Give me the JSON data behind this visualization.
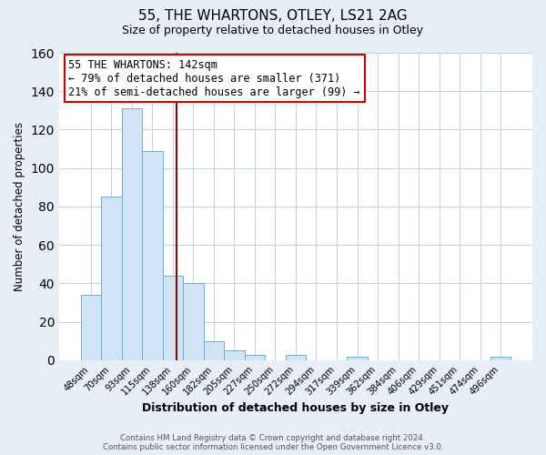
{
  "title1": "55, THE WHARTONS, OTLEY, LS21 2AG",
  "title2": "Size of property relative to detached houses in Otley",
  "xlabel": "Distribution of detached houses by size in Otley",
  "ylabel": "Number of detached properties",
  "bin_labels": [
    "48sqm",
    "70sqm",
    "93sqm",
    "115sqm",
    "138sqm",
    "160sqm",
    "182sqm",
    "205sqm",
    "227sqm",
    "250sqm",
    "272sqm",
    "294sqm",
    "317sqm",
    "339sqm",
    "362sqm",
    "384sqm",
    "406sqm",
    "429sqm",
    "451sqm",
    "474sqm",
    "496sqm"
  ],
  "bar_values": [
    34,
    85,
    131,
    109,
    44,
    40,
    10,
    5,
    3,
    0,
    3,
    0,
    0,
    2,
    0,
    0,
    0,
    0,
    0,
    0,
    2
  ],
  "bar_color": "#d0e4f5",
  "bar_edge_color": "#6aaed6",
  "highlight_line_color": "#990000",
  "annotation_text_line1": "55 THE WHARTONS: 142sqm",
  "annotation_text_line2": "← 79% of detached houses are smaller (371)",
  "annotation_text_line3": "21% of semi-detached houses are larger (99) →",
  "annotation_box_edge_color": "#cc0000",
  "annotation_box_facecolor": "#ffffff",
  "ylim": [
    0,
    160
  ],
  "yticks": [
    0,
    20,
    40,
    60,
    80,
    100,
    120,
    140,
    160
  ],
  "footnote1": "Contains HM Land Registry data © Crown copyright and database right 2024.",
  "footnote2": "Contains public sector information licensed under the Open Government Licence v3.0.",
  "plot_bg_color": "#ffffff",
  "fig_bg_color": "#e8eef8",
  "grid_color": "#c5d0e0",
  "red_line_x": 4.18
}
